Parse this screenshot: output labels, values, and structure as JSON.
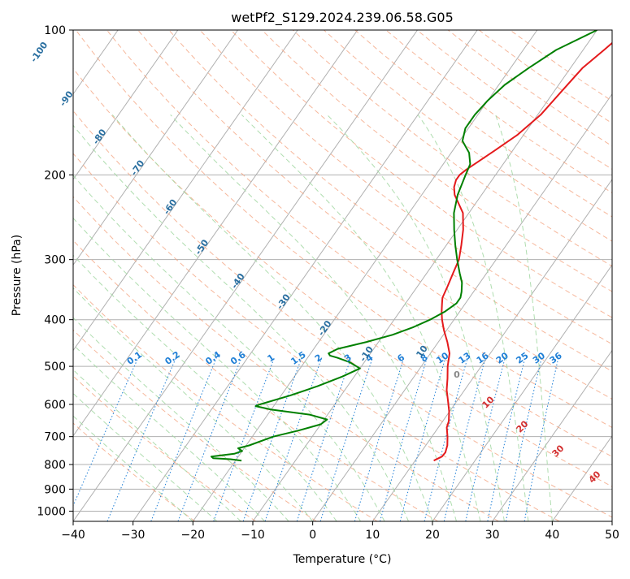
{
  "chart_data": {
    "type": "line",
    "title": "wetPf2_S129.2024.239.06.58.G05",
    "xlabel": "Temperature (°C)",
    "ylabel": "Pressure (hPa)",
    "xlim": [
      -40,
      50
    ],
    "ylim": [
      1050,
      100
    ],
    "yscale": "log",
    "x_ticks": [
      -40,
      -30,
      -20,
      -10,
      0,
      10,
      20,
      30,
      40,
      50
    ],
    "y_ticks": [
      100,
      200,
      300,
      400,
      500,
      600,
      700,
      800,
      900,
      1000
    ],
    "grid": true,
    "colors": {
      "temperature": "#e41a1c",
      "dewpoint": "#008000",
      "skewed_isotherms": "#b0b0b0",
      "dry_adiabats": "#f4a582",
      "moist_adiabats": "#a6d9a6",
      "mixing_ratio": "#1f7fd6",
      "isotherm_labels": "#2a6fa0",
      "dry_adiabat_labels": "#d32f2f",
      "isobars": "#b0b0b0"
    },
    "series": [
      {
        "key": "temperature",
        "p": [
          785,
          770,
          755,
          730,
          700,
          670,
          650,
          620,
          590,
          560,
          530,
          500,
          470,
          445,
          420,
          400,
          385,
          370,
          360,
          340,
          320,
          300,
          280,
          260,
          240,
          220,
          212,
          205,
          200,
          195,
          188,
          178,
          165,
          150,
          135,
          120,
          110,
          100
        ],
        "t": [
          13.1,
          14.0,
          14.1,
          13.6,
          12.6,
          11.4,
          11.0,
          9.9,
          8.5,
          7.0,
          5.8,
          4.4,
          3.2,
          1.5,
          -0.5,
          -2.0,
          -3.0,
          -3.9,
          -4.5,
          -5.0,
          -5.6,
          -6.2,
          -7.5,
          -9.0,
          -11.0,
          -14.5,
          -15.5,
          -16.0,
          -16.0,
          -15.5,
          -14.5,
          -13.0,
          -11.0,
          -9.5,
          -8.8,
          -8.0,
          -6.5,
          -5.0
        ]
      },
      {
        "key": "dewpoint",
        "p": [
          785,
          780,
          776,
          770,
          760,
          750,
          740,
          730,
          700,
          680,
          660,
          645,
          630,
          615,
          605,
          600,
          575,
          550,
          525,
          505,
          490,
          480,
          475,
          470,
          460,
          445,
          430,
          415,
          400,
          385,
          370,
          360,
          350,
          335,
          320,
          300,
          280,
          260,
          240,
          220,
          200,
          190,
          180,
          170,
          160,
          150,
          140,
          130,
          120,
          110,
          100
        ],
        "t": [
          -19.0,
          -21.0,
          -24.0,
          -24.5,
          -21.0,
          -20.0,
          -21.0,
          -19.5,
          -16.5,
          -13.0,
          -10.0,
          -9.5,
          -13.0,
          -20.0,
          -23.0,
          -22.5,
          -18.5,
          -15.0,
          -12.0,
          -10.0,
          -12.5,
          -15.0,
          -16.5,
          -17.0,
          -16.0,
          -12.0,
          -8.5,
          -6.0,
          -4.0,
          -2.5,
          -1.5,
          -1.5,
          -2.0,
          -3.0,
          -4.5,
          -6.5,
          -8.5,
          -10.5,
          -12.5,
          -14.0,
          -15.0,
          -15.5,
          -17.0,
          -19.5,
          -20.5,
          -20.5,
          -20.0,
          -19.0,
          -17.0,
          -14.5,
          -10.0
        ]
      }
    ],
    "annotations": {
      "isotherm_labels": [
        -100,
        -90,
        -80,
        -70,
        -60,
        -50,
        -40,
        -30,
        -20,
        -10,
        0,
        10
      ],
      "mixing_ratio_labels": [
        "0.1",
        "0.2",
        "0.4",
        "0.6",
        "1",
        "1.5",
        "2",
        "3",
        "4",
        "6",
        "8",
        "10",
        "13",
        "16",
        "20",
        "25",
        "30",
        "36"
      ],
      "dry_adiabat_labels": [
        "10",
        "20",
        "30",
        "40"
      ]
    }
  }
}
